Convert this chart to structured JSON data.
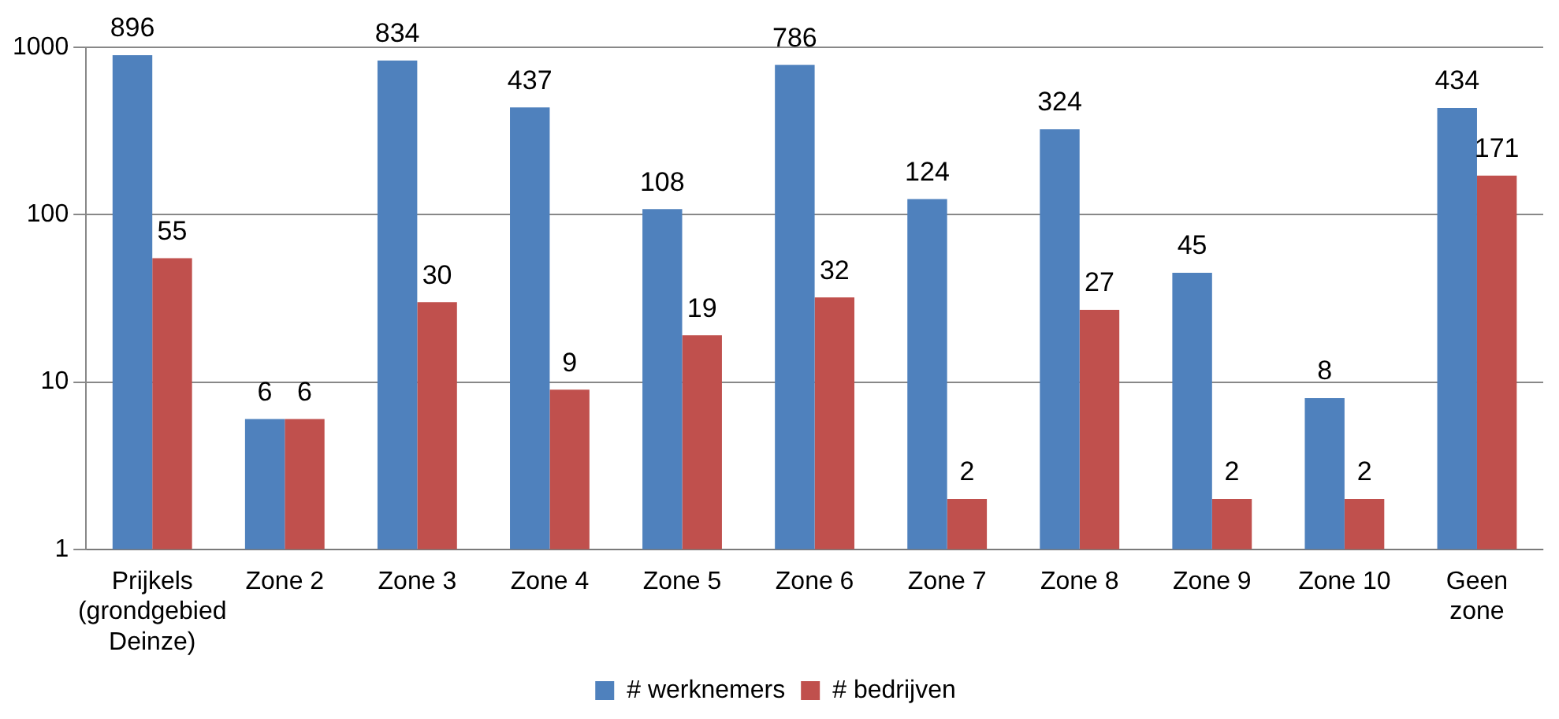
{
  "chart_data": {
    "type": "bar",
    "categories": [
      "Prijkels (grondgebied Deinze)",
      "Zone 2",
      "Zone 3",
      "Zone 4",
      "Zone 5",
      "Zone 6",
      "Zone 7",
      "Zone 8",
      "Zone 9",
      "Zone 10",
      "Geen zone"
    ],
    "series": [
      {
        "name": "# werknemers",
        "color": "#4f81bd",
        "values": [
          896,
          6,
          834,
          437,
          108,
          786,
          124,
          324,
          45,
          8,
          434
        ]
      },
      {
        "name": "# bedrijven",
        "color": "#c0504d",
        "values": [
          55,
          6,
          30,
          9,
          19,
          32,
          2,
          27,
          2,
          2,
          171
        ]
      }
    ],
    "log": "y",
    "ylim": [
      1,
      1000
    ],
    "yticks": [
      1,
      10,
      100,
      1000
    ],
    "grid": "y",
    "legend": "bottom",
    "data_labels": true
  }
}
